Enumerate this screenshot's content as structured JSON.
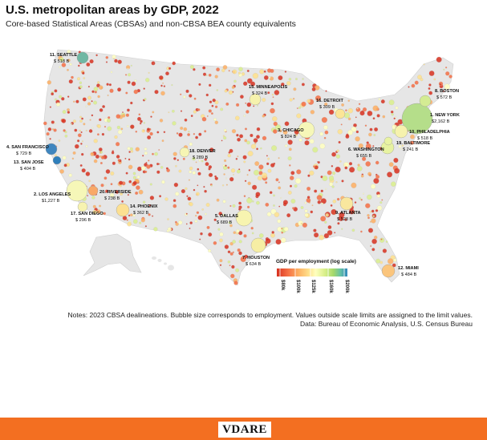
{
  "title": "U.S. metropolitan areas by GDP, 2022",
  "subtitle": "Core-based Statistical Areas (CBSAs) and non-CBSA BEA county equivalents",
  "legend": {
    "title": "GDP per employment (log scale)",
    "ticks": [
      "$80k",
      "$100k",
      "$125k",
      "$160k",
      "$200k"
    ],
    "colors": [
      "#d7301f",
      "#f46d43",
      "#fdae61",
      "#fee08b",
      "#ffffbf",
      "#d9ef8b",
      "#a6d96a",
      "#66c2a5",
      "#3288bd"
    ]
  },
  "notes": [
    "Notes: 2023 CBSA dealineations.  Bubble size corresponds to employment.  Values outside scale limits are assigned to the limit values.",
    "Data: Bureau of Economic Analysis, U.S. Census Bureau"
  ],
  "footer_logo": "VDARE",
  "metros": [
    {
      "id": "new-york",
      "rank": "1. NEW YORK",
      "gdp": "$2,162 B",
      "color": "#b5de8a"
    },
    {
      "id": "los-angeles",
      "rank": "2. LOS ANGELES",
      "gdp": "$1,227 B",
      "color": "#f6f7b8"
    },
    {
      "id": "chicago",
      "rank": "3. CHICAGO",
      "gdp": "$ 824 B",
      "color": "#f6f7b8"
    },
    {
      "id": "san-francisco",
      "rank": "4. SAN FRANCISCO",
      "gdp": "$ 729 B",
      "color": "#3f86bf"
    },
    {
      "id": "dallas",
      "rank": "5. DALLAS",
      "gdp": "$ 689 B",
      "color": "#f7f4b0"
    },
    {
      "id": "washington",
      "rank": "6. WASHINGTON",
      "gdp": "$ 655 B",
      "color": "#e7f2a0"
    },
    {
      "id": "houston",
      "rank": "7. HOUSTON",
      "gdp": "$ 634 B",
      "color": "#f6eea4"
    },
    {
      "id": "boston",
      "rank": "8. BOSTON",
      "gdp": "$ 572 B",
      "color": "#d4ec93"
    },
    {
      "id": "atlanta",
      "rank": "9. ATLANTA",
      "gdp": "$ 528 B",
      "color": "#f9e79e"
    },
    {
      "id": "philadelphia",
      "rank": "10. PHILADELPHIA",
      "gdp": "$ 518 B",
      "color": "#f6f2ad"
    },
    {
      "id": "seattle",
      "rank": "11. SEATTLE",
      "gdp": "$ 518 B",
      "color": "#6fb8a4"
    },
    {
      "id": "miami",
      "rank": "12. MIAMI",
      "gdp": "$ 484 B",
      "color": "#fbc57c"
    },
    {
      "id": "san-jose",
      "rank": "13. SAN JOSE",
      "gdp": "$ 404 B",
      "color": "#2f7fbb"
    },
    {
      "id": "phoenix",
      "rank": "14. PHOENIX",
      "gdp": "$ 362 B",
      "color": "#fce092"
    },
    {
      "id": "minneapolis",
      "rank": "15. MINNEAPOLIS",
      "gdp": "$ 324 B",
      "color": "#f6f2ad"
    },
    {
      "id": "detroit",
      "rank": "16. DETROIT",
      "gdp": "$ 309 B",
      "color": "#fce596"
    },
    {
      "id": "san-diego",
      "rank": "17. SAN DIEGO",
      "gdp": "$ 296 B",
      "color": "#f7f3b0"
    },
    {
      "id": "denver",
      "rank": "18. DENVER",
      "gdp": "$ 289 B",
      "color": "#f6f5b4"
    },
    {
      "id": "baltimore",
      "rank": "19. BALTIMORE",
      "gdp": "$ 241 B",
      "color": "#e9f3a3"
    },
    {
      "id": "riverside",
      "rank": "20. RIVERSIDE",
      "gdp": "$ 238 B",
      "color": "#f9a867"
    }
  ]
}
